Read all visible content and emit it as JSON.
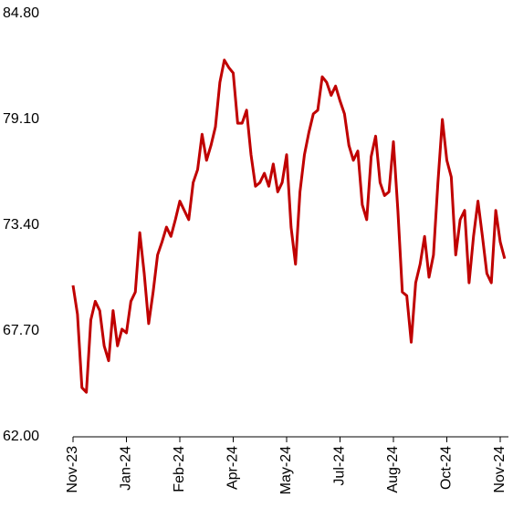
{
  "chart_data": {
    "type": "line",
    "categories": [
      "Nov-23",
      null,
      null,
      null,
      null,
      null,
      null,
      null,
      null,
      null,
      null,
      null,
      "Jan-24",
      null,
      null,
      null,
      null,
      null,
      null,
      null,
      null,
      null,
      null,
      null,
      "Feb-24",
      null,
      null,
      null,
      null,
      null,
      null,
      null,
      null,
      null,
      null,
      null,
      "Apr-24",
      null,
      null,
      null,
      null,
      null,
      null,
      null,
      null,
      null,
      null,
      null,
      "May-24",
      null,
      null,
      null,
      null,
      null,
      null,
      null,
      null,
      null,
      null,
      null,
      "Jul-24",
      null,
      null,
      null,
      null,
      null,
      null,
      null,
      null,
      null,
      null,
      null,
      "Aug-24",
      null,
      null,
      null,
      null,
      null,
      null,
      null,
      null,
      null,
      null,
      null,
      "Oct-24",
      null,
      null,
      null,
      null,
      null,
      null,
      null,
      null,
      null,
      null,
      null,
      "Nov-24",
      null
    ],
    "series": [
      {
        "color": "#c00000",
        "values": [
          70.16,
          68.6,
          64.65,
          64.4,
          68.3,
          69.3,
          68.8,
          66.9,
          66.1,
          68.8,
          66.9,
          67.8,
          67.6,
          69.3,
          69.8,
          73.0,
          70.8,
          68.1,
          69.8,
          71.8,
          72.5,
          73.3,
          72.8,
          73.7,
          74.7,
          74.2,
          73.7,
          75.7,
          76.4,
          78.3,
          76.9,
          77.7,
          78.7,
          81.1,
          82.3,
          81.9,
          81.6,
          78.9,
          78.9,
          79.6,
          77.2,
          75.5,
          75.7,
          76.2,
          75.5,
          76.7,
          75.2,
          75.7,
          77.2,
          73.3,
          71.3,
          75.2,
          77.2,
          78.4,
          79.4,
          79.6,
          81.4,
          81.1,
          80.4,
          80.9,
          80.1,
          79.4,
          77.7,
          76.9,
          77.4,
          74.5,
          73.7,
          77.1,
          78.2,
          75.7,
          75.0,
          75.2,
          77.9,
          74.2,
          69.8,
          69.6,
          67.1,
          70.3,
          71.3,
          72.8,
          70.6,
          71.8,
          75.7,
          79.1,
          76.9,
          76.0,
          71.8,
          73.7,
          74.2,
          70.3,
          72.8,
          74.7,
          72.8,
          70.8,
          70.3,
          74.2,
          72.5,
          71.6
        ]
      }
    ],
    "ylim": [
      62,
      84.8
    ],
    "yticks": [
      {
        "value": 62,
        "label": "62.00"
      },
      {
        "value": 67.7,
        "label": "67.70"
      },
      {
        "value": 73.4,
        "label": "73.40"
      },
      {
        "value": 79.1,
        "label": "79.10"
      },
      {
        "value": 84.8,
        "label": "84.80"
      }
    ]
  }
}
